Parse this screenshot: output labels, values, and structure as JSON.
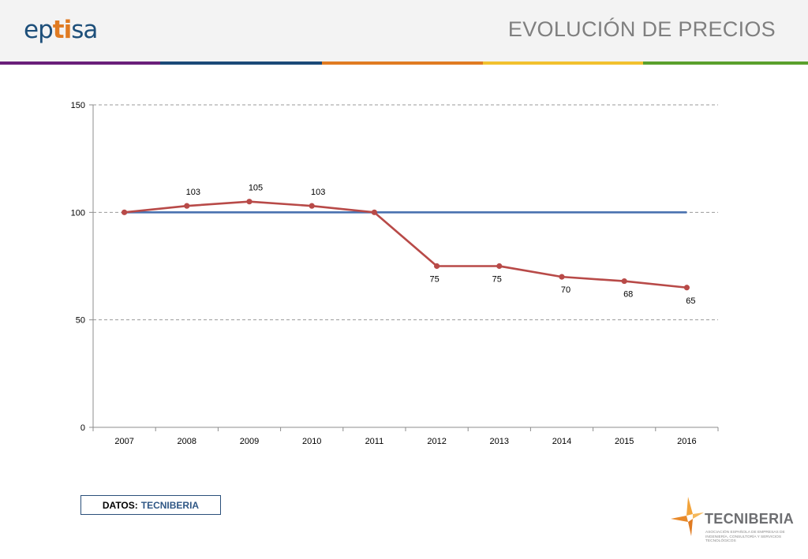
{
  "header": {
    "logo_prefix": "ep",
    "logo_accent": "ti",
    "logo_suffix": "sa",
    "title": "EVOLUCIÓN DE PRECIOS",
    "stripe_colors": [
      "#6a1f7a",
      "#1b4a78",
      "#e07b22",
      "#f2c12e",
      "#5aa02c"
    ]
  },
  "footer": {
    "source_label": "DATOS:",
    "source_value": "TECNIBERIA",
    "partner_logo_name": "TECNIBERIA",
    "partner_logo_tagline": "ASOCIACIÓN ESPAÑOLA DE EMPRESAS DE INGENIERÍA, CONSULTORÍA Y SERVICIOS TECNOLÓGICOS"
  },
  "chart_data": {
    "type": "line",
    "title": "",
    "xlabel": "",
    "ylabel": "",
    "categories": [
      "2007",
      "2008",
      "2009",
      "2010",
      "2011",
      "2012",
      "2013",
      "2014",
      "2015",
      "2016"
    ],
    "ylim": [
      0,
      150
    ],
    "yticks": [
      0,
      50,
      100,
      150
    ],
    "grid": "horizontal dashed",
    "legend": "none",
    "series": [
      {
        "color": "#4a72b0",
        "markers": false,
        "data_labels": false,
        "values": [
          100,
          100,
          100,
          100,
          100,
          100,
          100,
          100,
          100,
          100
        ]
      },
      {
        "color": "#b84a48",
        "markers": true,
        "data_labels": true,
        "values": [
          100,
          103,
          105,
          103,
          100,
          75,
          75,
          70,
          68,
          65
        ],
        "labels": [
          "",
          "103",
          "105",
          "103",
          "",
          "75",
          "75",
          "70",
          "68",
          "65"
        ]
      }
    ]
  }
}
